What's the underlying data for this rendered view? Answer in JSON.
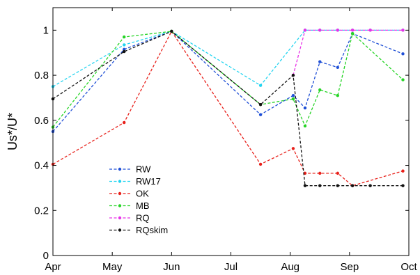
{
  "chart_data": {
    "type": "line",
    "title": "",
    "xlabel": "",
    "ylabel": "Us*/U*",
    "xlim": [
      "Apr",
      "Oct"
    ],
    "ylim": [
      0,
      1.1
    ],
    "x_ticks": [
      "Apr",
      "May",
      "Jun",
      "Jul",
      "Aug",
      "Sep",
      "Oct"
    ],
    "y_ticks": [
      "0",
      "0.2",
      "0.4",
      "0.6",
      "0.8",
      "1"
    ],
    "y_tick_values": [
      0,
      0.2,
      0.4,
      0.6,
      0.8,
      1.0
    ],
    "grid": false,
    "legend_position": "lower-left",
    "series": [
      {
        "name": "RW",
        "color": "#1f4fd6",
        "x": [
          0,
          1.2,
          2.0,
          3.5,
          4.05,
          4.25,
          4.5,
          4.8,
          5.05,
          5.9
        ],
        "y": [
          0.55,
          0.915,
          0.995,
          0.625,
          0.71,
          0.655,
          0.86,
          0.835,
          0.985,
          0.895
        ]
      },
      {
        "name": "RW17",
        "color": "#22d4f0",
        "x": [
          0,
          1.2,
          2.0,
          3.5,
          4.25,
          4.5,
          4.8,
          5.05,
          5.35,
          5.9
        ],
        "y": [
          0.75,
          0.935,
          0.995,
          0.755,
          1.0,
          1.0,
          1.0,
          1.0,
          1.0,
          1.0
        ]
      },
      {
        "name": "OK",
        "color": "#e8201a",
        "x": [
          0,
          1.2,
          2.0,
          3.5,
          4.05,
          4.25,
          4.5,
          4.8,
          5.05,
          5.9
        ],
        "y": [
          0.405,
          0.59,
          0.995,
          0.405,
          0.475,
          0.365,
          0.365,
          0.365,
          0.31,
          0.375
        ]
      },
      {
        "name": "MB",
        "color": "#26d426",
        "x": [
          0,
          1.2,
          2.0,
          3.5,
          4.05,
          4.25,
          4.5,
          4.8,
          5.05,
          5.9
        ],
        "y": [
          0.57,
          0.97,
          0.995,
          0.67,
          0.695,
          0.575,
          0.735,
          0.71,
          0.985,
          0.78
        ]
      },
      {
        "name": "RQ",
        "color": "#e832e8",
        "x": [
          4.05,
          4.25,
          4.5,
          4.8,
          5.05,
          5.35,
          5.9
        ],
        "y": [
          0.8,
          1.0,
          1.0,
          1.0,
          1.0,
          1.0,
          1.0
        ]
      },
      {
        "name": "RQskim",
        "color": "#111111",
        "x": [
          0,
          1.2,
          2.0,
          3.5,
          4.05,
          4.25,
          4.5,
          4.8,
          5.05,
          5.35,
          5.9
        ],
        "y": [
          0.695,
          0.905,
          0.995,
          0.67,
          0.8,
          0.31,
          0.31,
          0.31,
          0.31,
          0.31,
          0.31
        ]
      }
    ]
  }
}
